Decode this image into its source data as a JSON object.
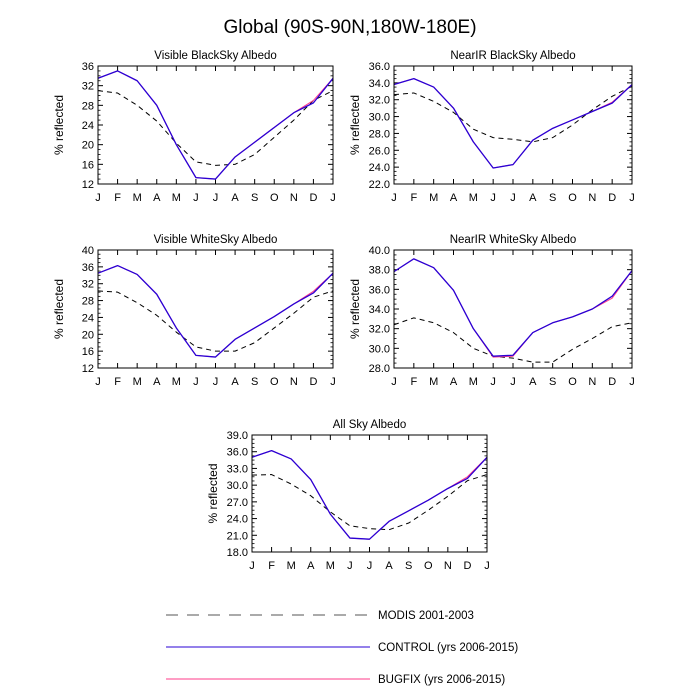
{
  "figure": {
    "title": "Global (90S-90N,180W-180E)"
  },
  "chart_data": [
    {
      "type": "line",
      "title": "Visible BlackSky Albedo",
      "xlabel": "",
      "ylabel": "% reflected",
      "categories": [
        "J",
        "F",
        "M",
        "A",
        "M",
        "J",
        "J",
        "A",
        "S",
        "O",
        "N",
        "D",
        "J"
      ],
      "ylim": [
        12,
        36
      ],
      "yticks": [
        "12",
        "16",
        "20",
        "24",
        "28",
        "32",
        "36"
      ],
      "series": [
        {
          "name": "MODIS 2001-2003",
          "values": [
            31.0,
            30.5,
            28.0,
            24.8,
            20.3,
            16.5,
            15.8,
            16.0,
            18.0,
            21.5,
            25.0,
            29.0,
            31.0
          ]
        },
        {
          "name": "CONTROL (yrs 2006-2015)",
          "values": [
            33.5,
            35.0,
            33.0,
            28.0,
            20.0,
            13.3,
            13.0,
            17.5,
            20.5,
            23.5,
            26.5,
            28.5,
            33.5
          ]
        },
        {
          "name": "BUGFIX (yrs 2006-2015)",
          "values": [
            33.5,
            35.0,
            33.0,
            28.0,
            20.0,
            13.3,
            13.0,
            17.5,
            20.5,
            23.5,
            26.5,
            29.0,
            33.5
          ]
        }
      ]
    },
    {
      "type": "line",
      "title": "NearIR BlackSky Albedo",
      "xlabel": "",
      "ylabel": "% reflected",
      "categories": [
        "J",
        "F",
        "M",
        "A",
        "M",
        "J",
        "J",
        "A",
        "S",
        "O",
        "N",
        "D",
        "J"
      ],
      "ylim": [
        22.0,
        36.0
      ],
      "yticks": [
        "22.0",
        "24.0",
        "26.0",
        "28.0",
        "30.0",
        "32.0",
        "34.0",
        "36.0"
      ],
      "series": [
        {
          "name": "MODIS 2001-2003",
          "values": [
            32.6,
            32.8,
            31.8,
            30.5,
            28.5,
            27.5,
            27.3,
            27.0,
            27.5,
            29.0,
            30.8,
            32.4,
            33.6
          ]
        },
        {
          "name": "CONTROL (yrs 2006-2015)",
          "values": [
            33.8,
            34.5,
            33.5,
            31.0,
            27.0,
            23.9,
            24.3,
            27.2,
            28.6,
            29.6,
            30.6,
            31.6,
            33.8
          ]
        },
        {
          "name": "BUGFIX (yrs 2006-2015)",
          "values": [
            33.8,
            34.5,
            33.5,
            31.0,
            27.0,
            23.9,
            24.3,
            27.2,
            28.6,
            29.6,
            30.6,
            31.7,
            33.8
          ]
        }
      ]
    },
    {
      "type": "line",
      "title": "Visible WhiteSky Albedo",
      "xlabel": "",
      "ylabel": "% reflected",
      "categories": [
        "J",
        "F",
        "M",
        "A",
        "M",
        "J",
        "J",
        "A",
        "S",
        "O",
        "N",
        "D",
        "J"
      ],
      "ylim": [
        12,
        40
      ],
      "yticks": [
        "12",
        "16",
        "20",
        "24",
        "28",
        "32",
        "36",
        "40"
      ],
      "series": [
        {
          "name": "MODIS 2001-2003",
          "values": [
            30.3,
            30.0,
            27.5,
            24.5,
            20.5,
            17.0,
            16.0,
            16.0,
            18.0,
            21.5,
            25.0,
            28.8,
            30.3
          ]
        },
        {
          "name": "CONTROL (yrs 2006-2015)",
          "values": [
            34.5,
            36.3,
            34.2,
            29.5,
            21.5,
            15.0,
            14.6,
            18.8,
            21.5,
            24.2,
            27.2,
            29.8,
            34.5
          ]
        },
        {
          "name": "BUGFIX (yrs 2006-2015)",
          "values": [
            34.5,
            36.3,
            34.2,
            29.5,
            21.5,
            15.0,
            14.6,
            18.8,
            21.5,
            24.2,
            27.2,
            30.2,
            34.5
          ]
        }
      ]
    },
    {
      "type": "line",
      "title": "NearIR WhiteSky Albedo",
      "xlabel": "",
      "ylabel": "% reflected",
      "categories": [
        "J",
        "F",
        "M",
        "A",
        "M",
        "J",
        "J",
        "A",
        "S",
        "O",
        "N",
        "D",
        "J"
      ],
      "ylim": [
        28.0,
        40.0
      ],
      "yticks": [
        "28.0",
        "30.0",
        "32.0",
        "34.0",
        "36.0",
        "38.0",
        "40.0"
      ],
      "series": [
        {
          "name": "MODIS 2001-2003",
          "values": [
            32.4,
            33.1,
            32.6,
            31.6,
            30.0,
            29.2,
            29.0,
            28.6,
            28.6,
            29.9,
            31.0,
            32.2,
            32.6
          ]
        },
        {
          "name": "CONTROL (yrs 2006-2015)",
          "values": [
            37.8,
            39.1,
            38.2,
            35.9,
            32.0,
            29.2,
            29.3,
            31.6,
            32.6,
            33.2,
            34.0,
            35.3,
            37.9
          ]
        },
        {
          "name": "BUGFIX (yrs 2006-2015)",
          "values": [
            37.8,
            39.1,
            38.2,
            35.9,
            32.0,
            29.1,
            29.2,
            31.6,
            32.6,
            33.2,
            34.0,
            35.1,
            37.9
          ]
        }
      ]
    },
    {
      "type": "line",
      "title": "All Sky Albedo",
      "xlabel": "",
      "ylabel": "% reflected",
      "categories": [
        "J",
        "F",
        "M",
        "A",
        "M",
        "J",
        "J",
        "A",
        "S",
        "O",
        "N",
        "D",
        "J"
      ],
      "ylim": [
        18.0,
        39.0
      ],
      "yticks": [
        "18.0",
        "21.0",
        "24.0",
        "27.0",
        "30.0",
        "33.0",
        "36.0",
        "39.0"
      ],
      "series": [
        {
          "name": "MODIS 2001-2003",
          "values": [
            31.8,
            31.9,
            30.2,
            28.1,
            25.2,
            22.7,
            22.2,
            22.0,
            23.2,
            25.5,
            28.0,
            30.8,
            31.9
          ]
        },
        {
          "name": "CONTROL (yrs 2006-2015)",
          "values": [
            35.0,
            36.2,
            34.7,
            31.0,
            24.8,
            20.5,
            20.3,
            23.5,
            25.4,
            27.3,
            29.4,
            31.2,
            35.0
          ]
        },
        {
          "name": "BUGFIX (yrs 2006-2015)",
          "values": [
            35.0,
            36.2,
            34.7,
            31.0,
            24.8,
            20.5,
            20.3,
            23.5,
            25.4,
            27.3,
            29.4,
            31.5,
            35.0
          ]
        }
      ]
    }
  ],
  "legend": {
    "placement": "bottom-center",
    "items": [
      {
        "label": "MODIS 2001-2003",
        "color": "#000000",
        "style": "dashed"
      },
      {
        "label": "CONTROL (yrs 2006-2015)",
        "color": "#2a00d4",
        "style": "solid"
      },
      {
        "label": "BUGFIX (yrs 2006-2015)",
        "color": "#ff3b8a",
        "style": "solid"
      }
    ]
  },
  "colors": {
    "modis": "#000000",
    "control": "#2a00d4",
    "bugfix": "#ff3b8a"
  }
}
